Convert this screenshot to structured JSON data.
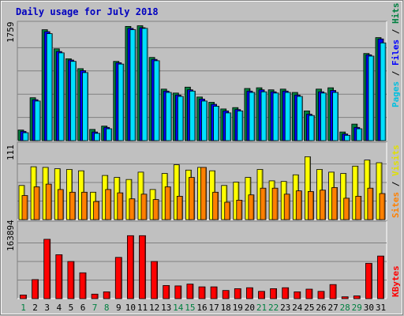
{
  "chart_data": [
    {
      "type": "bar",
      "title": "Daily usage for July 2018",
      "panel": "hits-files-pages",
      "categories": [
        "1",
        "2",
        "3",
        "4",
        "5",
        "6",
        "7",
        "8",
        "9",
        "10",
        "11",
        "12",
        "13",
        "14",
        "15",
        "16",
        "17",
        "18",
        "19",
        "20",
        "21",
        "22",
        "23",
        "24",
        "25",
        "26",
        "27",
        "28",
        "29",
        "30",
        "31"
      ],
      "weekend_days": [
        "1",
        "7",
        "8",
        "14",
        "15",
        "21",
        "22",
        "28",
        "29"
      ],
      "ymax_label": "1759",
      "ylim": [
        0,
        1759
      ],
      "grid": true,
      "series": [
        {
          "name": "Hits",
          "color": "#008040",
          "values": [
            160,
            650,
            1680,
            1390,
            1240,
            1090,
            170,
            220,
            1200,
            1730,
            1740,
            1260,
            780,
            720,
            810,
            660,
            580,
            480,
            500,
            790,
            800,
            770,
            780,
            730,
            450,
            780,
            800,
            130,
            250,
            1320,
            1560
          ]
        },
        {
          "name": "Files",
          "color": "#0000FF",
          "values": [
            140,
            620,
            1650,
            1350,
            1220,
            1060,
            130,
            200,
            1180,
            1700,
            1710,
            1230,
            750,
            690,
            770,
            630,
            550,
            450,
            470,
            750,
            770,
            740,
            750,
            690,
            400,
            740,
            760,
            100,
            200,
            1300,
            1540
          ]
        },
        {
          "name": "Pages",
          "color": "#00E0FF",
          "values": [
            120,
            600,
            1620,
            1330,
            1200,
            1030,
            110,
            180,
            1160,
            1680,
            1700,
            1210,
            730,
            670,
            750,
            600,
            520,
            420,
            450,
            730,
            740,
            720,
            730,
            670,
            380,
            720,
            730,
            80,
            180,
            1280,
            1480
          ]
        }
      ]
    },
    {
      "type": "bar",
      "panel": "visits-sites",
      "categories": [
        "1",
        "2",
        "3",
        "4",
        "5",
        "6",
        "7",
        "8",
        "9",
        "10",
        "11",
        "12",
        "13",
        "14",
        "15",
        "16",
        "17",
        "18",
        "19",
        "20",
        "21",
        "22",
        "23",
        "24",
        "25",
        "26",
        "27",
        "28",
        "29",
        "30",
        "31"
      ],
      "ymax_label": "111",
      "ylim": [
        0,
        111
      ],
      "grid": true,
      "series": [
        {
          "name": "Visits",
          "color": "#FFFF00",
          "values": [
            51,
            79,
            78,
            76,
            75,
            73,
            41,
            66,
            63,
            60,
            71,
            45,
            69,
            82,
            74,
            78,
            73,
            51,
            56,
            63,
            75,
            58,
            57,
            67,
            94,
            75,
            71,
            69,
            80,
            89,
            85
          ]
        },
        {
          "name": "Sites",
          "color": "#FF8000",
          "values": [
            36,
            49,
            53,
            45,
            41,
            41,
            27,
            45,
            40,
            31,
            38,
            30,
            49,
            35,
            63,
            78,
            41,
            26,
            29,
            37,
            47,
            47,
            38,
            43,
            42,
            44,
            48,
            32,
            35,
            47,
            39
          ]
        }
      ]
    },
    {
      "type": "bar",
      "panel": "kbytes",
      "categories": [
        "1",
        "2",
        "3",
        "4",
        "5",
        "6",
        "7",
        "8",
        "9",
        "10",
        "11",
        "12",
        "13",
        "14",
        "15",
        "16",
        "17",
        "18",
        "19",
        "20",
        "21",
        "22",
        "23",
        "24",
        "25",
        "26",
        "27",
        "28",
        "29",
        "30",
        "31"
      ],
      "ymax_label": "163894",
      "ylim": [
        0,
        163894
      ],
      "grid": true,
      "series": [
        {
          "name": "KBytes",
          "color": "#FF0000",
          "values": [
            8000,
            42000,
            131000,
            97000,
            82000,
            57000,
            10000,
            15000,
            91000,
            139000,
            139000,
            82000,
            29000,
            28000,
            32000,
            26000,
            26000,
            18000,
            22000,
            24000,
            16000,
            22000,
            24000,
            15000,
            21000,
            16000,
            31000,
            4000,
            6000,
            78000,
            94000
          ]
        }
      ]
    }
  ]
}
